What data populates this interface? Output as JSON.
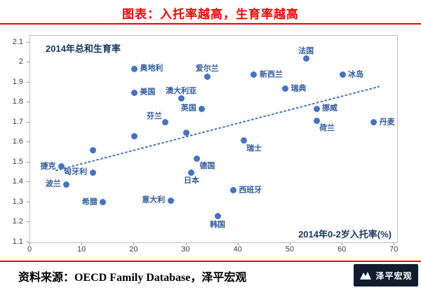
{
  "title": "图表：入托率越高，生育率越高",
  "source": {
    "text": "资料来源：OECD Family Database，泽平宏观"
  },
  "logo": {
    "text": "泽平宏观"
  },
  "colors": {
    "accent_red": "#FF0000",
    "dot_blue": "#4472C4",
    "point_label_blue": "#2E5B9F",
    "inner_label_navy": "#17375E"
  },
  "chart_data": {
    "type": "scatter",
    "title": "图表：入托率越高，生育率越高",
    "inner_y_title": "2014年总和生育率",
    "inner_x_title": "2014年0-2岁入托率(%)",
    "xlabel": "2014年0-2岁入托率(%)",
    "ylabel": "2014年总和生育率",
    "xlim": [
      0,
      70.5
    ],
    "ylim": [
      1.1,
      2.135
    ],
    "grid": false,
    "legend": "none",
    "x_ticks": {
      "values": [
        0,
        10,
        20,
        30,
        40,
        50,
        60,
        70
      ],
      "labels": [
        "0",
        "10",
        "20",
        "30",
        "40",
        "50",
        "60",
        "70"
      ]
    },
    "y_ticks": {
      "values": [
        2.1,
        2.0,
        1.9,
        1.8,
        1.7,
        1.6,
        1.5,
        1.4,
        1.3,
        1.2,
        1.1
      ],
      "labels": [
        "2.1",
        "2",
        "1.9",
        "1.8",
        "1.7",
        "1.6",
        "1.5",
        "1.4",
        "1.3",
        "1.2",
        "1.1"
      ]
    },
    "points": [
      {
        "label": "捷克",
        "x": 6,
        "y": 1.48,
        "placement": "left"
      },
      {
        "label": "波兰",
        "x": 7,
        "y": 1.39,
        "placement": "left"
      },
      {
        "label": "匈牙利",
        "x": 12,
        "y": 1.45,
        "placement": "left"
      },
      {
        "label": "希腊",
        "x": 14,
        "y": 1.3,
        "placement": "left"
      },
      {
        "label": "",
        "x": 12,
        "y": 1.56,
        "placement": "right"
      },
      {
        "label": "",
        "x": 20,
        "y": 1.63,
        "placement": "right"
      },
      {
        "label": "",
        "x": 30,
        "y": 1.65,
        "placement": "right"
      },
      {
        "label": "奥地利",
        "x": 20,
        "y": 1.97,
        "placement": "right"
      },
      {
        "label": "美国",
        "x": 20,
        "y": 1.85,
        "placement": "right"
      },
      {
        "label": "芬兰",
        "x": 26,
        "y": 1.7,
        "placement": "above-left"
      },
      {
        "label": "意大利",
        "x": 27,
        "y": 1.31,
        "placement": "left"
      },
      {
        "label": "澳大利亚",
        "x": 29,
        "y": 1.82,
        "placement": "above"
      },
      {
        "label": "英国",
        "x": 33,
        "y": 1.77,
        "placement": "left"
      },
      {
        "label": "爱尔兰",
        "x": 34,
        "y": 1.93,
        "placement": "above"
      },
      {
        "label": "德国",
        "x": 32,
        "y": 1.52,
        "placement": "below-right"
      },
      {
        "label": "日本",
        "x": 31,
        "y": 1.45,
        "placement": "below"
      },
      {
        "label": "韩国",
        "x": 36,
        "y": 1.23,
        "placement": "below"
      },
      {
        "label": "西班牙",
        "x": 39,
        "y": 1.36,
        "placement": "right"
      },
      {
        "label": "瑞士",
        "x": 41,
        "y": 1.61,
        "placement": "below-right"
      },
      {
        "label": "新西兰",
        "x": 43,
        "y": 1.94,
        "placement": "right"
      },
      {
        "label": "瑞典",
        "x": 49,
        "y": 1.87,
        "placement": "right"
      },
      {
        "label": "法国",
        "x": 53,
        "y": 2.02,
        "placement": "above"
      },
      {
        "label": "挪威",
        "x": 55,
        "y": 1.77,
        "placement": "right"
      },
      {
        "label": "荷兰",
        "x": 55,
        "y": 1.71,
        "placement": "below-right"
      },
      {
        "label": "冰岛",
        "x": 60,
        "y": 1.94,
        "placement": "right"
      },
      {
        "label": "丹麦",
        "x": 66,
        "y": 1.7,
        "placement": "right"
      }
    ],
    "trendline": {
      "style": "dotted",
      "x1": 5,
      "y1": 1.46,
      "x2": 67,
      "y2": 1.88
    }
  }
}
